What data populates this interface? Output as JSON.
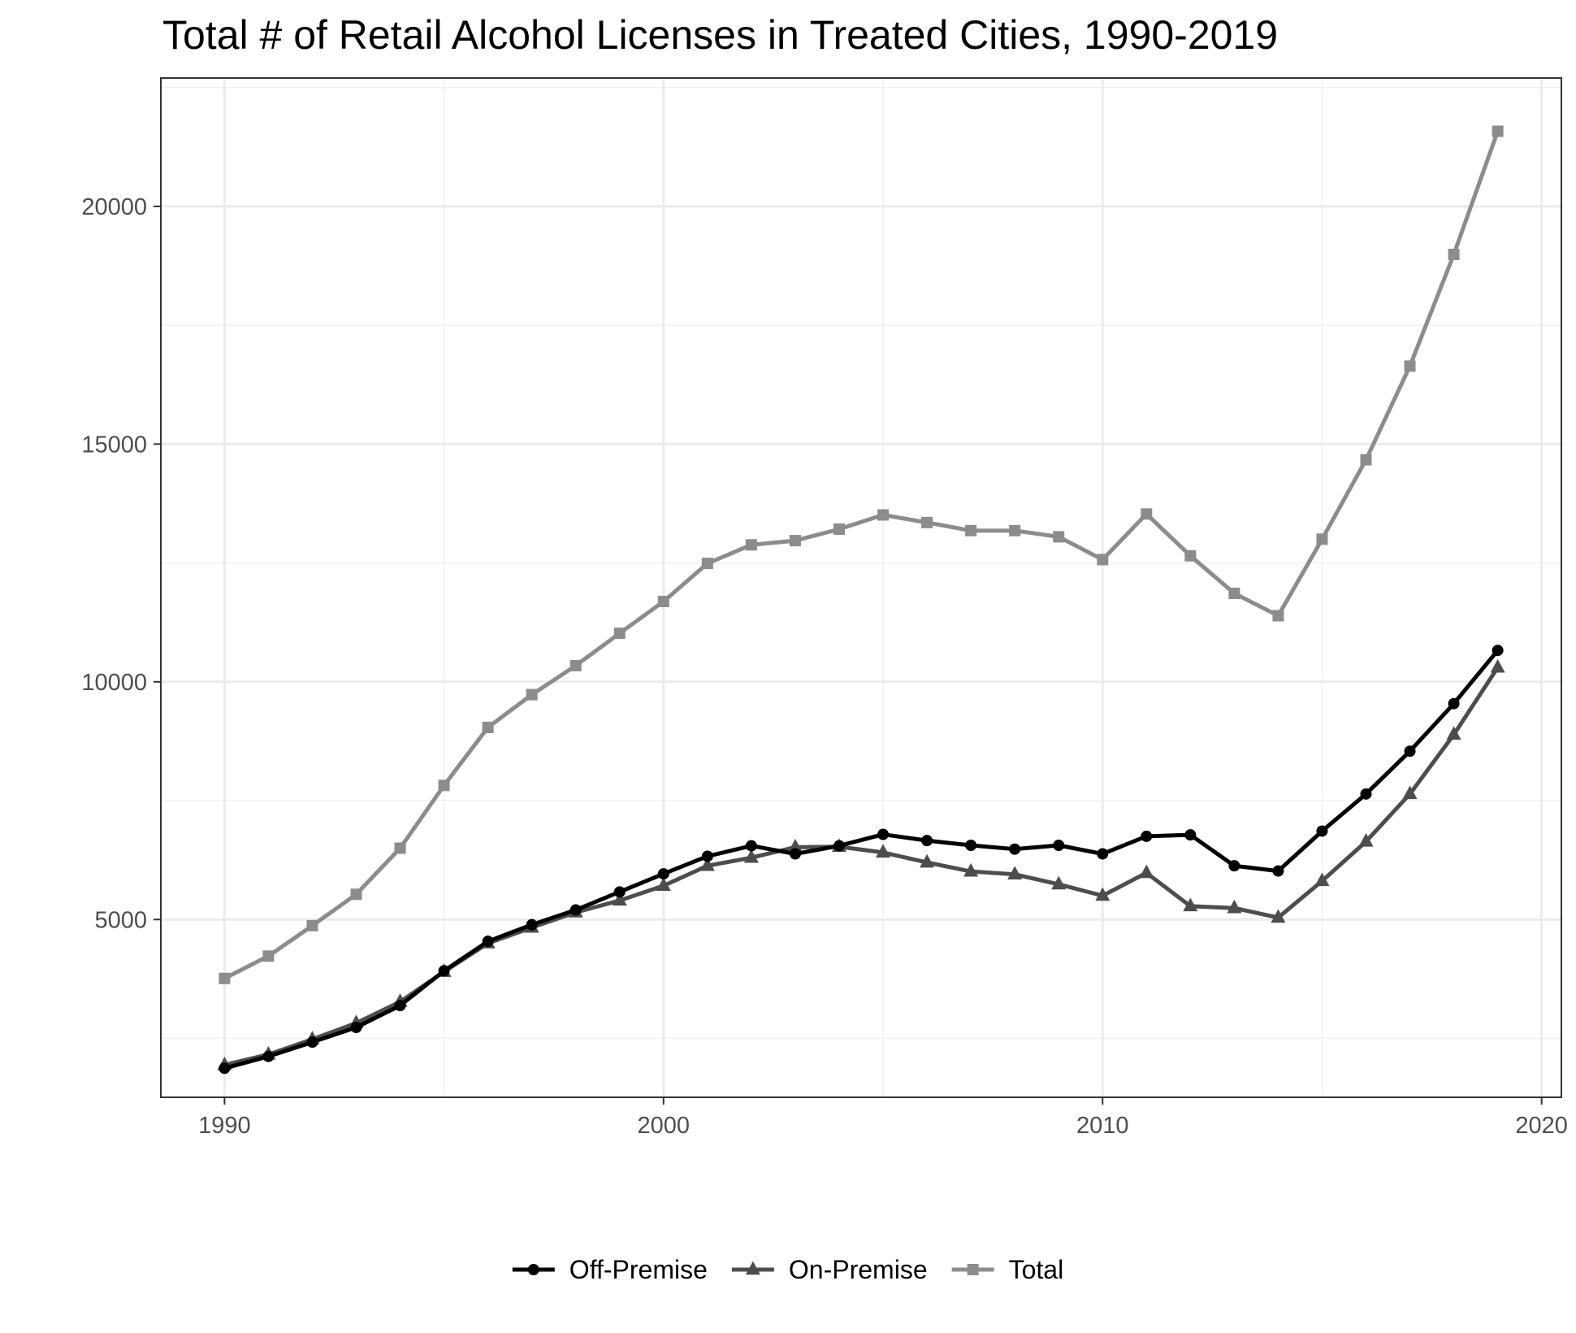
{
  "chart_data": {
    "type": "line",
    "title": "Total # of Retail Alcohol Licenses in Treated Cities, 1990-2019",
    "xlabel": "",
    "ylabel": "",
    "xlim": [
      1988.55,
      2020.45
    ],
    "ylim": [
      1260,
      22700
    ],
    "x_ticks": [
      1990,
      2000,
      2010,
      2020
    ],
    "y_ticks": [
      5000,
      10000,
      15000,
      20000
    ],
    "grid": true,
    "legend_position": "bottom",
    "x": [
      1990,
      1991,
      1992,
      1993,
      1994,
      1995,
      1996,
      1997,
      1998,
      1999,
      2000,
      2001,
      2002,
      2003,
      2004,
      2005,
      2006,
      2007,
      2008,
      2009,
      2010,
      2011,
      2012,
      2013,
      2014,
      2015,
      2016,
      2017,
      2018,
      2019
    ],
    "series": [
      {
        "name": "Off-Premise",
        "color": "#000000",
        "marker": "circle",
        "values": [
          1870,
          2120,
          2420,
          2730,
          3190,
          3920,
          4540,
          4890,
          5200,
          5580,
          5960,
          6330,
          6550,
          6380,
          6550,
          6790,
          6660,
          6560,
          6480,
          6560,
          6380,
          6750,
          6780,
          6130,
          6020,
          6860,
          7640,
          8540,
          9540,
          10660
        ]
      },
      {
        "name": "On-Premise",
        "color": "#4d4d4d",
        "marker": "triangle",
        "values": [
          1940,
          2160,
          2480,
          2820,
          3270,
          3900,
          4500,
          4830,
          5150,
          5400,
          5710,
          6130,
          6300,
          6520,
          6530,
          6410,
          6200,
          6010,
          5950,
          5740,
          5500,
          5980,
          5280,
          5240,
          5040,
          5810,
          6640,
          7640,
          8890,
          10300
        ]
      },
      {
        "name": "Total",
        "color": "#8c8c8c",
        "marker": "square",
        "values": [
          3760,
          4230,
          4870,
          5530,
          6500,
          7820,
          9040,
          9730,
          10340,
          11020,
          11690,
          12490,
          12880,
          12970,
          13210,
          13510,
          13350,
          13180,
          13180,
          13050,
          12570,
          13530,
          12650,
          11860,
          11390,
          13000,
          14670,
          16640,
          18990,
          21580
        ]
      }
    ]
  }
}
